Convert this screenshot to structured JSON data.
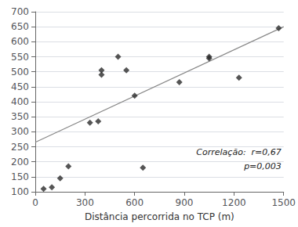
{
  "chart_data": {
    "type": "scatter",
    "xlabel": "Distância percorrida no TCP (m)",
    "series": [
      {
        "type": "scatter",
        "marker": "diamond",
        "color": "#2a2a2a",
        "x": [
          50,
          100,
          150,
          200,
          330,
          380,
          400,
          400,
          500,
          550,
          600,
          650,
          870,
          1050,
          1050,
          1230,
          1470
        ],
        "values": [
          110,
          115,
          145,
          185,
          330,
          335,
          505,
          490,
          550,
          505,
          420,
          180,
          465,
          550,
          545,
          480,
          645
        ]
      },
      {
        "type": "line",
        "color": "#888888",
        "x": [
          0,
          1500
        ],
        "values": [
          265,
          650
        ]
      }
    ],
    "xlim": [
      0,
      1500
    ],
    "ylim": [
      100,
      700
    ],
    "xticks": [
      0,
      300,
      600,
      900,
      1200,
      1500
    ],
    "yticks": [
      100,
      150,
      200,
      250,
      300,
      350,
      400,
      450,
      500,
      550,
      600,
      650,
      700
    ],
    "grid": "y",
    "annotations": [
      "Correlação:  r=0,67",
      "p=0,003"
    ]
  }
}
